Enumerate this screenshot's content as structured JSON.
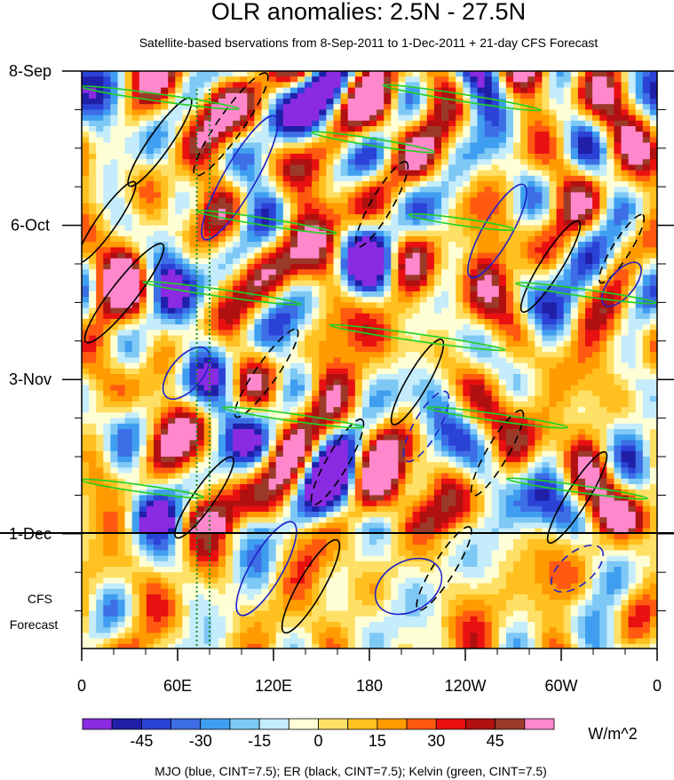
{
  "chart_data": {
    "type": "heatmap",
    "title": "OLR anomalies: 2.5N - 27.5N",
    "subtitle": "Satellite-based bservations from 8-Sep-2011 to 1-Dec-2011 + 21-day CFS Forecast",
    "x_ticks": [
      "0",
      "60E",
      "120E",
      "180",
      "120W",
      "60W",
      "0"
    ],
    "x_tick_lon": [
      0,
      60,
      120,
      180,
      240,
      300,
      360
    ],
    "y_ticks": [
      "8-Sep",
      "6-Oct",
      "3-Nov",
      "1-Dec"
    ],
    "y_tick_day": [
      0,
      28,
      56,
      84
    ],
    "forecast_label": [
      "CFS",
      "Forecast"
    ],
    "forecast_days": 21,
    "colorbar": {
      "units": "W/m^2",
      "tick_labels": [
        "-45",
        "-30",
        "-15",
        "0",
        "15",
        "30",
        "45"
      ],
      "tick_values": [
        -45,
        -30,
        -15,
        0,
        15,
        30,
        45
      ],
      "levels": [
        -52.5,
        -45,
        -37.5,
        -30,
        -22.5,
        -15,
        -7.5,
        0,
        7.5,
        15,
        22.5,
        30,
        37.5,
        45,
        52.5
      ],
      "colors": [
        "#8a2be2",
        "#1f1fa8",
        "#2b42d6",
        "#3d6ee6",
        "#3f9ef0",
        "#7ec8f5",
        "#c4ecfb",
        "#ffffd6",
        "#ffe066",
        "#ffc020",
        "#ff9a00",
        "#ff5a10",
        "#e81010",
        "#b01010",
        "#9c3a2a",
        "#ff88cc"
      ]
    },
    "footer_legend": "MJO (blue, CINT=7.5); ER (black, CINT=7.5); Kelvin (green, CINT=7.5)",
    "contours": {
      "mjo_color": "#2020c8",
      "er_color": "#000000",
      "kelvin_color": "#20d020"
    },
    "reference_line_lon": [
      72,
      80
    ],
    "reference_line_color": "#1a8a2a"
  }
}
